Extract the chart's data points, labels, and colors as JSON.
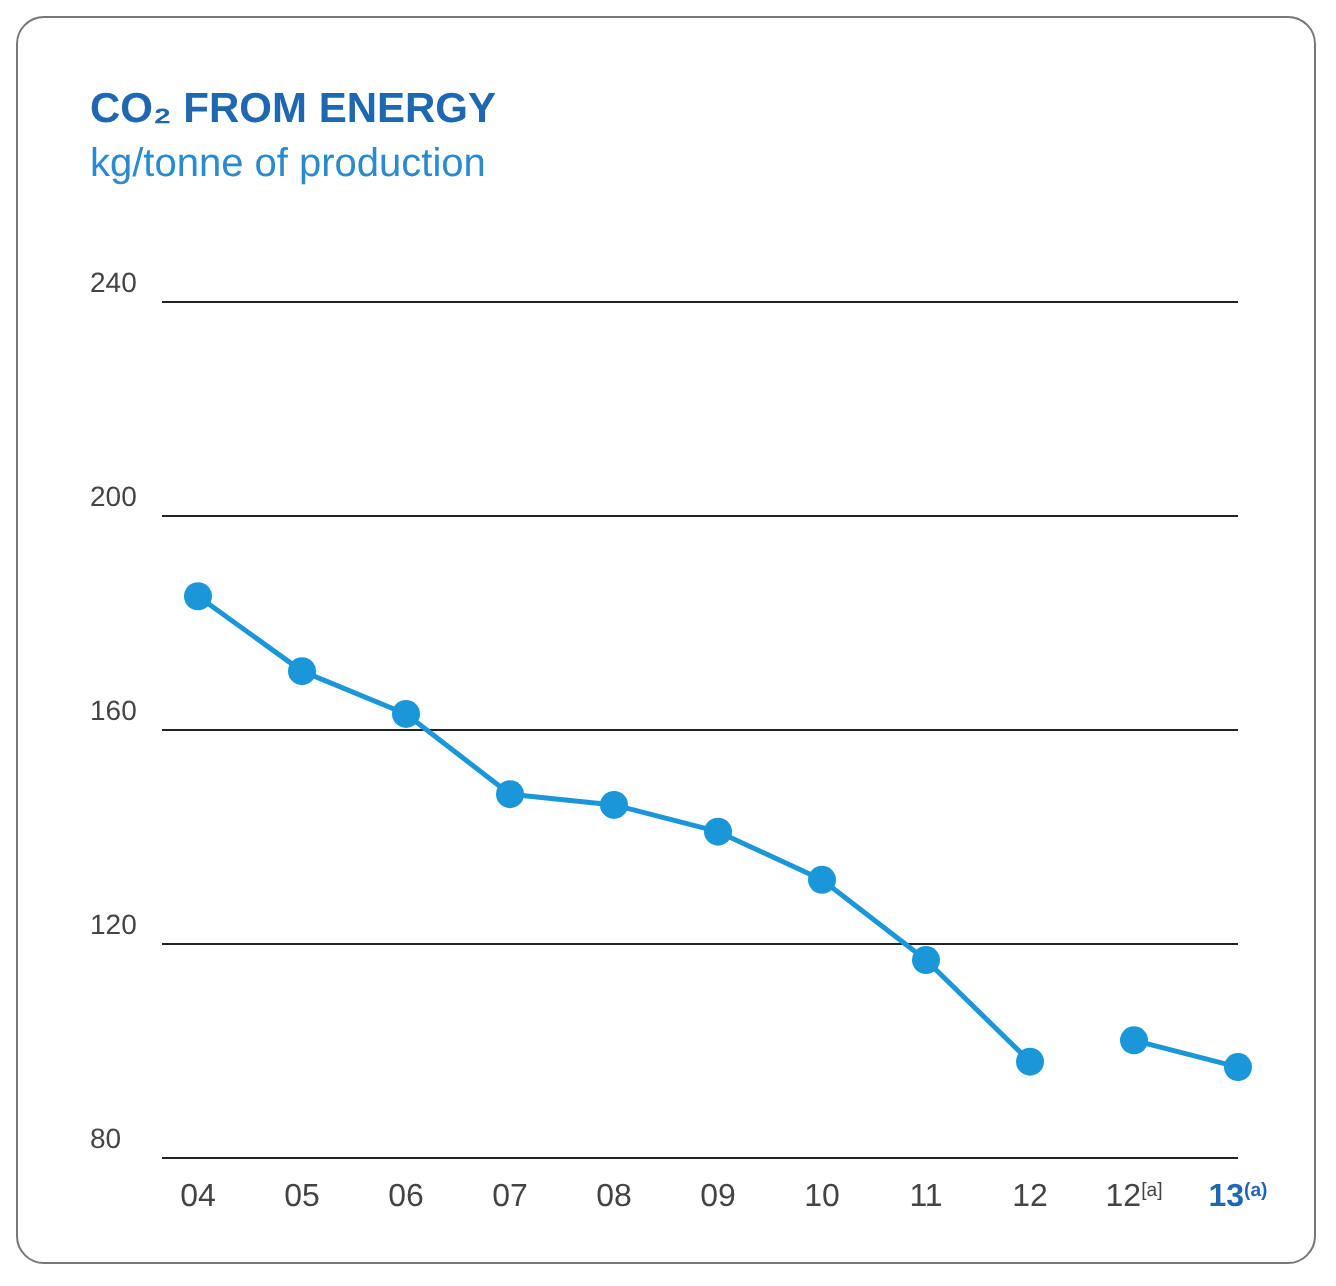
{
  "chart_data": {
    "type": "line",
    "title": "CO₂ FROM ENERGY",
    "subtitle": "kg/tonne of production",
    "categories": [
      "04",
      "05",
      "06",
      "07",
      "08",
      "09",
      "10",
      "11",
      "12",
      "12$^{[a]}$",
      "13$^{(a)}$"
    ],
    "series": [
      {
        "color": "#1a96d9",
        "values": [
          185,
          171,
          163,
          148,
          146,
          141,
          132,
          117,
          98,
          null,
          null
        ]
      },
      {
        "color": "#1a96d9",
        "values": [
          null,
          null,
          null,
          null,
          null,
          null,
          null,
          null,
          null,
          102,
          97
        ]
      }
    ],
    "ylim": [
      80,
      240
    ],
    "yticks": [
      80,
      120,
      160,
      200,
      240
    ],
    "grid": "y",
    "marker": "circle",
    "line_style": "solid"
  }
}
